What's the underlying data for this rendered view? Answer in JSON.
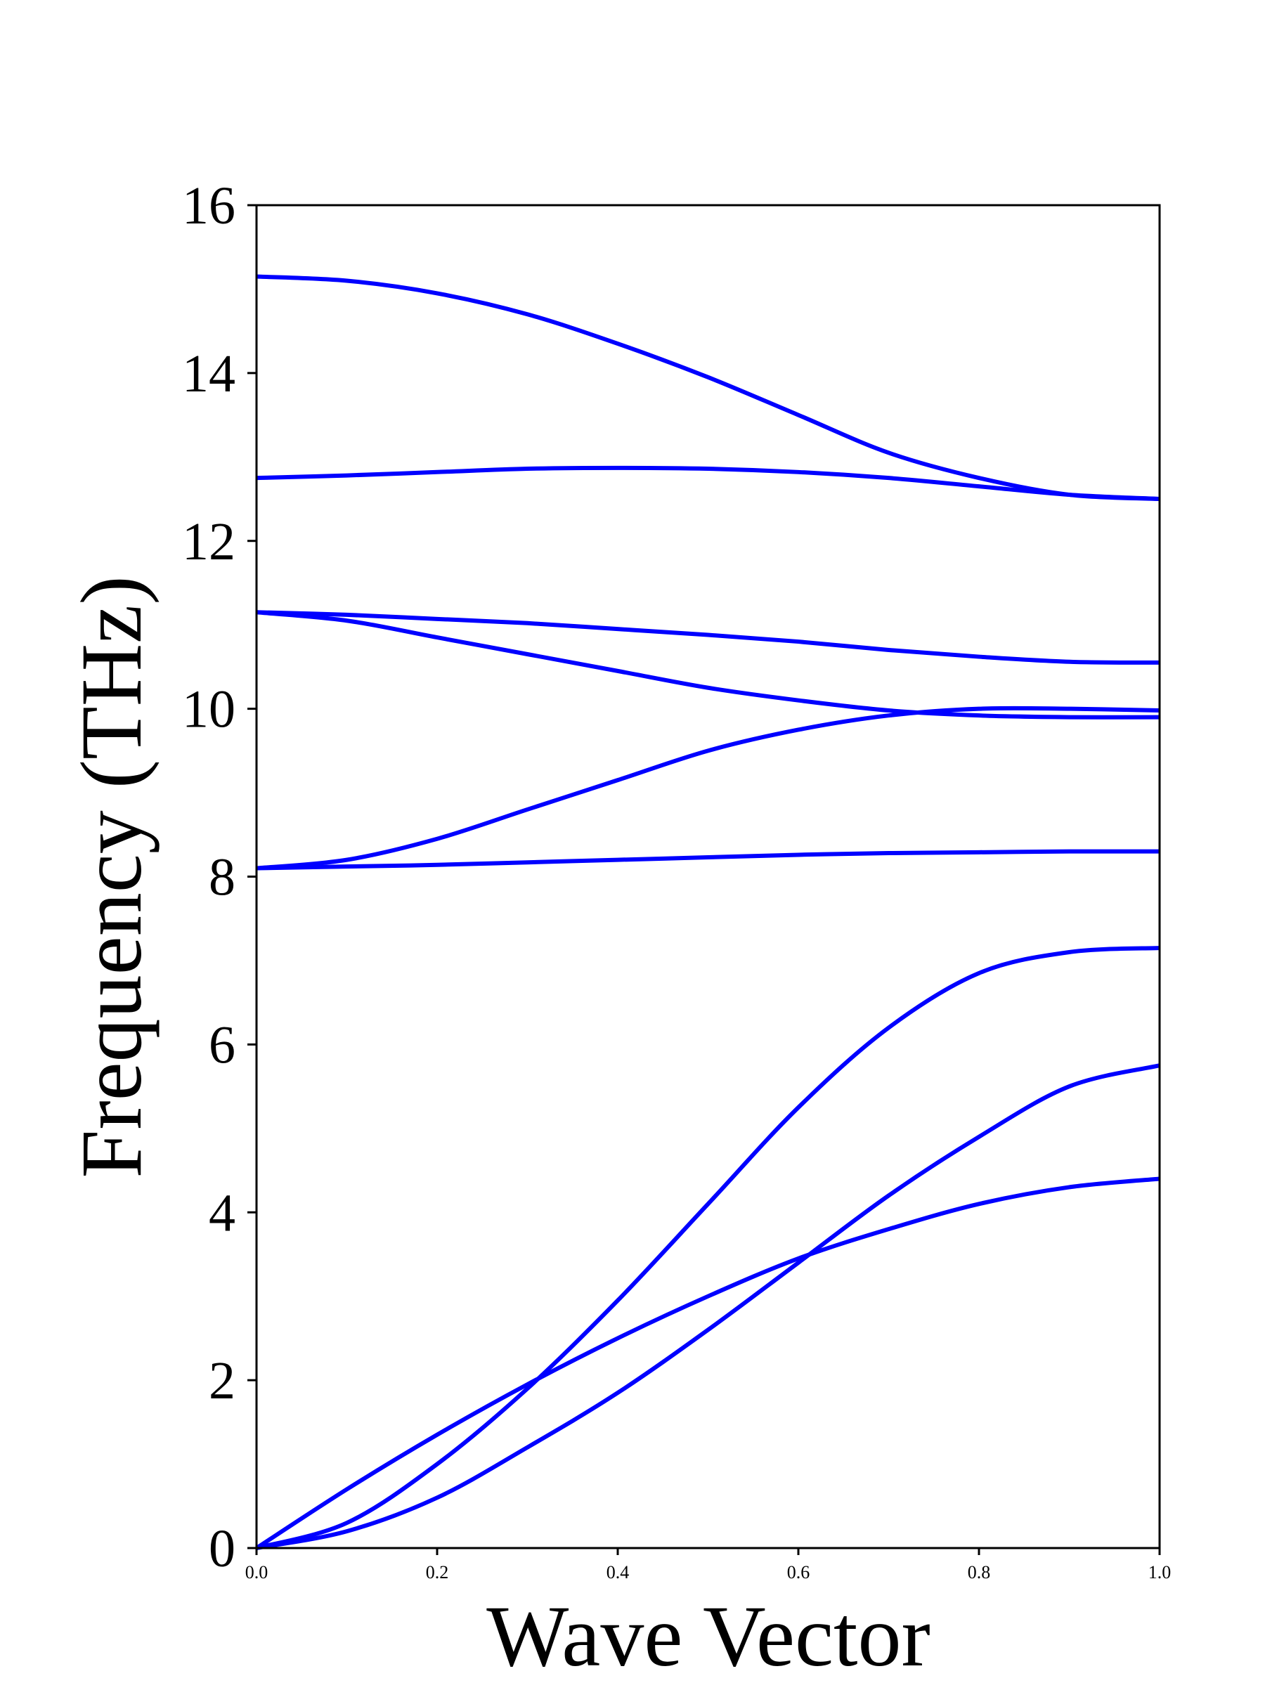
{
  "chart_data": {
    "type": "line",
    "title": "",
    "xlabel": "Wave Vector",
    "ylabel": "Frequency (THz)",
    "xlim": [
      0.0,
      1.0
    ],
    "ylim": [
      0,
      16
    ],
    "x_ticks": [
      "0.0",
      "0.2",
      "0.4",
      "0.6",
      "0.8",
      "1.0"
    ],
    "y_ticks": [
      "0",
      "2",
      "4",
      "6",
      "8",
      "10",
      "12",
      "14",
      "16"
    ],
    "grid": false,
    "legend": "none",
    "line_color": "#0000ff",
    "x": [
      0.0,
      0.1,
      0.2,
      0.3,
      0.4,
      0.5,
      0.6,
      0.7,
      0.8,
      0.9,
      1.0
    ],
    "series": [
      {
        "values": [
          0.0,
          0.3,
          1.0,
          1.9,
          2.95,
          4.1,
          5.25,
          6.2,
          6.85,
          7.1,
          7.15
        ]
      },
      {
        "values": [
          0.0,
          0.2,
          0.6,
          1.2,
          1.85,
          2.6,
          3.4,
          4.2,
          4.9,
          5.5,
          5.75
        ]
      },
      {
        "values": [
          0.0,
          0.7,
          1.35,
          1.95,
          2.5,
          3.0,
          3.45,
          3.8,
          4.1,
          4.3,
          4.4
        ]
      },
      {
        "values": [
          8.1,
          8.12,
          8.14,
          8.17,
          8.2,
          8.23,
          8.26,
          8.28,
          8.29,
          8.3,
          8.3
        ]
      },
      {
        "values": [
          8.1,
          8.2,
          8.45,
          8.8,
          9.15,
          9.5,
          9.75,
          9.92,
          10.0,
          10.0,
          9.98
        ]
      },
      {
        "values": [
          11.15,
          11.05,
          10.85,
          10.65,
          10.45,
          10.25,
          10.1,
          9.98,
          9.92,
          9.9,
          9.9
        ]
      },
      {
        "values": [
          11.15,
          11.12,
          11.07,
          11.02,
          10.95,
          10.88,
          10.8,
          10.7,
          10.62,
          10.56,
          10.55
        ]
      },
      {
        "values": [
          12.75,
          12.78,
          12.82,
          12.86,
          12.87,
          12.86,
          12.82,
          12.75,
          12.65,
          12.55,
          12.5
        ]
      },
      {
        "values": [
          15.15,
          15.1,
          14.95,
          14.7,
          14.35,
          13.95,
          13.5,
          13.05,
          12.75,
          12.55,
          12.5
        ]
      }
    ]
  }
}
